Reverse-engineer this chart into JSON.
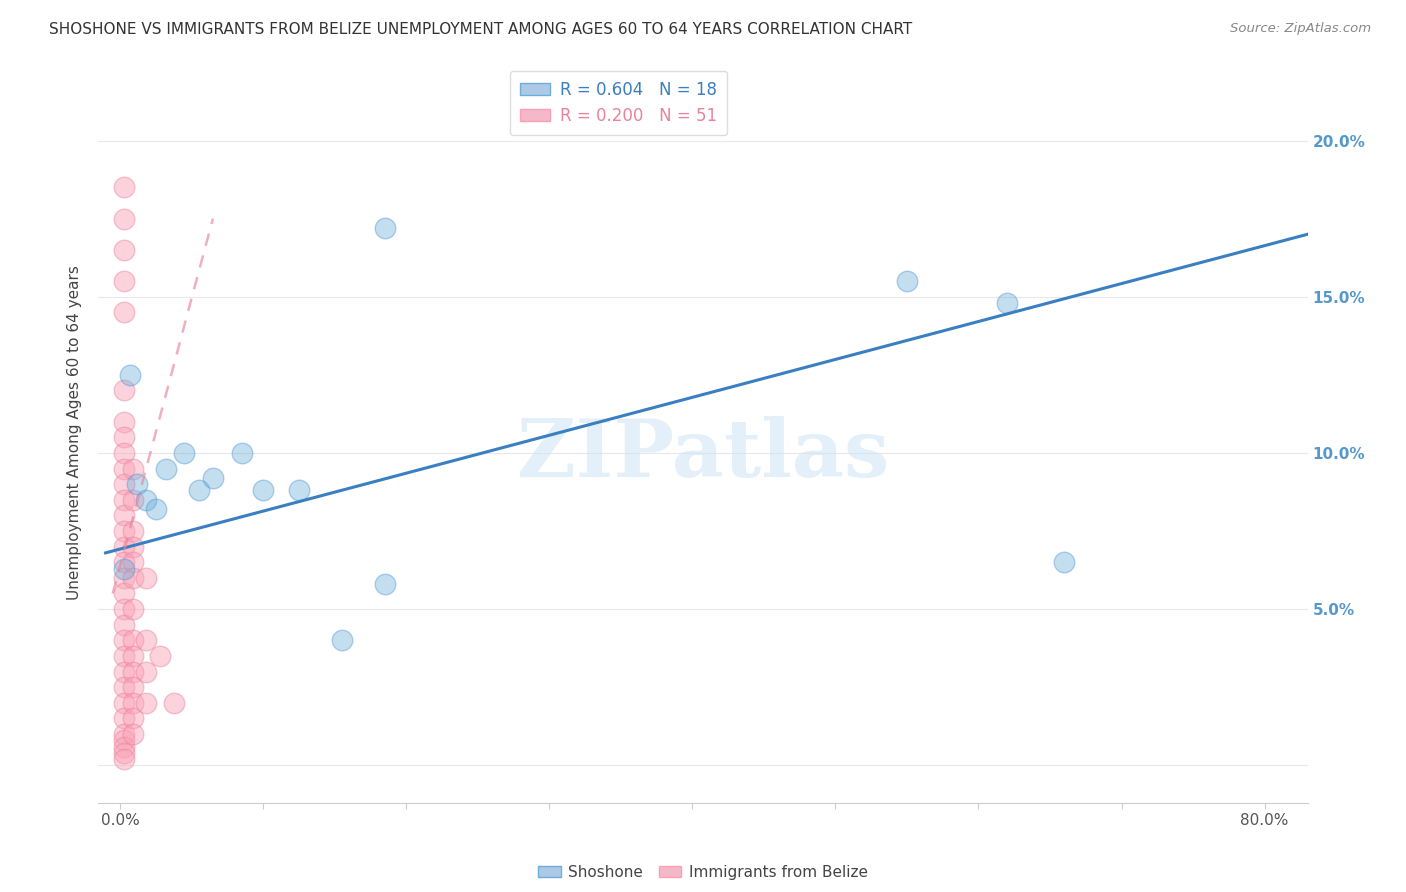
{
  "title": "SHOSHONE VS IMMIGRANTS FROM BELIZE UNEMPLOYMENT AMONG AGES 60 TO 64 YEARS CORRELATION CHART",
  "source": "Source: ZipAtlas.com",
  "ylabel": "Unemployment Among Ages 60 to 64 years",
  "x_ticks": [
    0.0,
    0.1,
    0.2,
    0.3,
    0.4,
    0.5,
    0.6,
    0.7,
    0.8
  ],
  "x_tick_labels_sparse": {
    "0.0": "0.0%",
    "0.8": "80.0%"
  },
  "y_ticks": [
    0.0,
    0.05,
    0.1,
    0.15,
    0.2
  ],
  "y_tick_labels_right": [
    "",
    "5.0%",
    "10.0%",
    "15.0%",
    "20.0%"
  ],
  "xlim": [
    -0.015,
    0.83
  ],
  "ylim": [
    -0.012,
    0.225
  ],
  "legend_entry1": {
    "R": "0.604",
    "N": "18",
    "label": "Shoshone"
  },
  "legend_entry2": {
    "R": "0.200",
    "N": "51",
    "label": "Immigrants from Belize"
  },
  "shoshone_x": [
    0.003,
    0.007,
    0.012,
    0.018,
    0.025,
    0.032,
    0.045,
    0.055,
    0.065,
    0.085,
    0.1,
    0.125,
    0.155,
    0.185,
    0.185,
    0.55,
    0.62,
    0.66
  ],
  "shoshone_y": [
    0.063,
    0.125,
    0.09,
    0.085,
    0.082,
    0.095,
    0.1,
    0.088,
    0.092,
    0.1,
    0.088,
    0.088,
    0.04,
    0.058,
    0.172,
    0.155,
    0.148,
    0.065
  ],
  "belize_x": [
    0.003,
    0.003,
    0.003,
    0.003,
    0.003,
    0.003,
    0.003,
    0.003,
    0.003,
    0.003,
    0.003,
    0.003,
    0.003,
    0.003,
    0.003,
    0.003,
    0.003,
    0.003,
    0.003,
    0.003,
    0.003,
    0.003,
    0.003,
    0.003,
    0.003,
    0.003,
    0.003,
    0.003,
    0.003,
    0.003,
    0.003,
    0.009,
    0.009,
    0.009,
    0.009,
    0.009,
    0.009,
    0.009,
    0.009,
    0.009,
    0.009,
    0.009,
    0.009,
    0.009,
    0.009,
    0.018,
    0.018,
    0.018,
    0.018,
    0.028,
    0.038
  ],
  "belize_y": [
    0.185,
    0.175,
    0.165,
    0.155,
    0.145,
    0.12,
    0.11,
    0.105,
    0.1,
    0.095,
    0.09,
    0.085,
    0.08,
    0.075,
    0.07,
    0.065,
    0.06,
    0.055,
    0.05,
    0.045,
    0.04,
    0.035,
    0.03,
    0.025,
    0.02,
    0.015,
    0.01,
    0.008,
    0.006,
    0.004,
    0.002,
    0.095,
    0.085,
    0.075,
    0.07,
    0.065,
    0.06,
    0.05,
    0.04,
    0.035,
    0.03,
    0.025,
    0.02,
    0.015,
    0.01,
    0.06,
    0.04,
    0.03,
    0.02,
    0.035,
    0.02
  ],
  "shoshone_line_x": [
    -0.01,
    0.83
  ],
  "shoshone_line_y": [
    0.068,
    0.17
  ],
  "belize_line_x": [
    -0.005,
    0.065
  ],
  "belize_line_y": [
    0.055,
    0.175
  ],
  "shoshone_color": "#6baed6",
  "shoshone_edge": "#4a90d9",
  "belize_color": "#fa9fb5",
  "belize_edge": "#e8849a",
  "shoshone_line_color": "#3a7fc1",
  "belize_line_color": "#e8849a",
  "watermark_text": "ZIPatlas",
  "background_color": "#ffffff",
  "grid_color": "#e8e8e8",
  "title_color": "#333333",
  "source_color": "#888888",
  "right_axis_color": "#5599cc"
}
